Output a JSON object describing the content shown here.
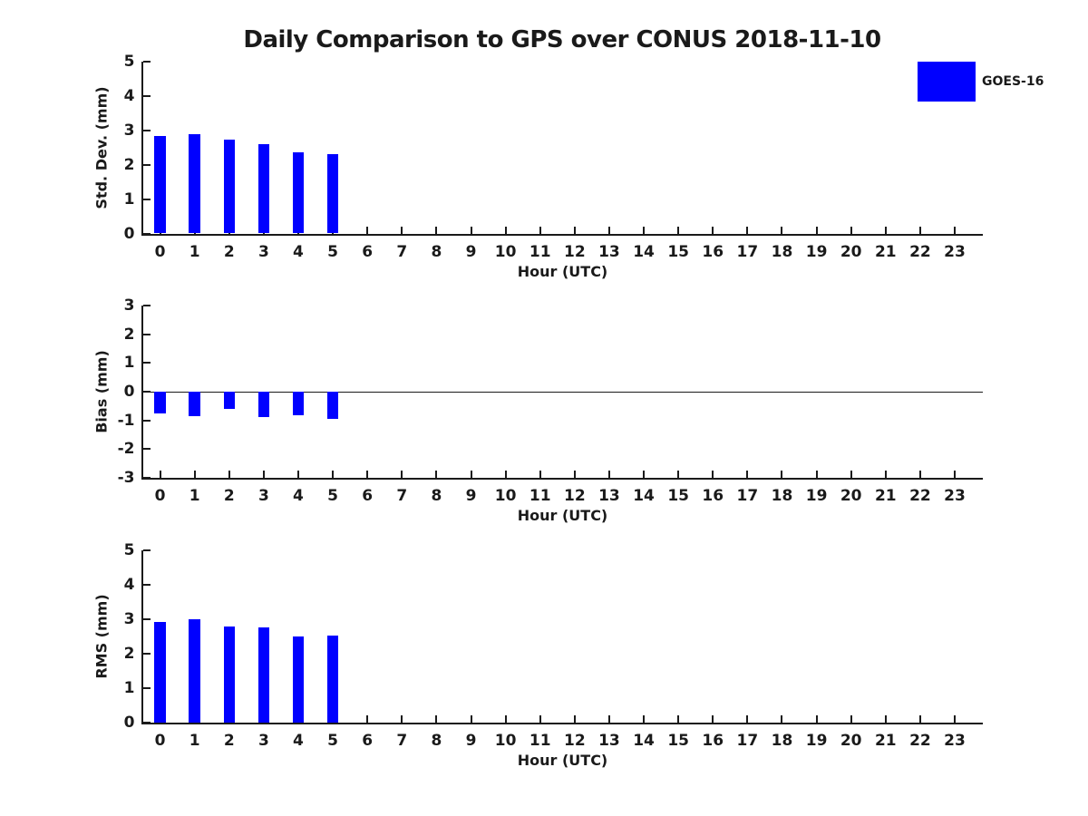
{
  "title": "Daily Comparison to GPS over CONUS 2018-11-10",
  "legend": {
    "label": "GOES-16",
    "swatch_color": "#0000FF"
  },
  "colors": {
    "bar": "#0000FF",
    "axis": "#1a1a1a",
    "text": "#1a1a1a",
    "background": "#FFFFFF"
  },
  "chart_data": [
    {
      "type": "bar",
      "series_name": "GOES-16",
      "ylabel": "Std. Dev. (mm)",
      "xlabel": "Hour (UTC)",
      "x": [
        0,
        1,
        2,
        3,
        4,
        5
      ],
      "values": [
        2.84,
        2.88,
        2.72,
        2.61,
        2.36,
        2.32
      ],
      "xlim": [
        -0.5,
        23.8
      ],
      "ylim": [
        0,
        5
      ],
      "yticks": [
        0,
        1,
        2,
        3,
        4,
        5
      ],
      "xticks": [
        0,
        1,
        2,
        3,
        4,
        5,
        6,
        7,
        8,
        9,
        10,
        11,
        12,
        13,
        14,
        15,
        16,
        17,
        18,
        19,
        20,
        21,
        22,
        23
      ],
      "grid": false,
      "legend_position": "upper-right-outside"
    },
    {
      "type": "bar",
      "series_name": "GOES-16",
      "ylabel": "Bias (mm)",
      "xlabel": "Hour (UTC)",
      "x": [
        0,
        1,
        2,
        3,
        4,
        5
      ],
      "values": [
        -0.75,
        -0.86,
        -0.6,
        -0.88,
        -0.82,
        -0.95
      ],
      "xlim": [
        -0.5,
        23.8
      ],
      "ylim": [
        -3,
        3
      ],
      "yticks": [
        -3,
        -2,
        -1,
        0,
        1,
        2,
        3
      ],
      "xticks": [
        0,
        1,
        2,
        3,
        4,
        5,
        6,
        7,
        8,
        9,
        10,
        11,
        12,
        13,
        14,
        15,
        16,
        17,
        18,
        19,
        20,
        21,
        22,
        23
      ],
      "zero_line": true,
      "grid": false
    },
    {
      "type": "bar",
      "series_name": "GOES-16",
      "ylabel": "RMS (mm)",
      "xlabel": "Hour (UTC)",
      "x": [
        0,
        1,
        2,
        3,
        4,
        5
      ],
      "values": [
        2.93,
        2.99,
        2.79,
        2.76,
        2.51,
        2.53
      ],
      "xlim": [
        -0.5,
        23.8
      ],
      "ylim": [
        0,
        5
      ],
      "yticks": [
        0,
        1,
        2,
        3,
        4,
        5
      ],
      "xticks": [
        0,
        1,
        2,
        3,
        4,
        5,
        6,
        7,
        8,
        9,
        10,
        11,
        12,
        13,
        14,
        15,
        16,
        17,
        18,
        19,
        20,
        21,
        22,
        23
      ],
      "grid": false
    }
  ]
}
